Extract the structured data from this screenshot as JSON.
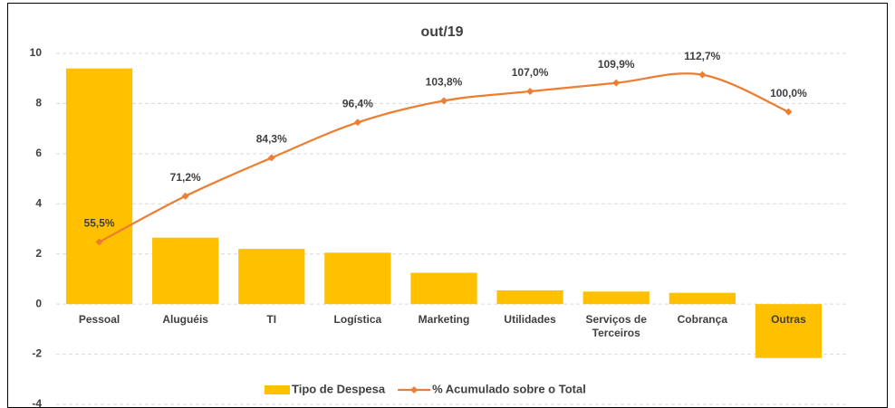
{
  "chart_data": {
    "type": "bar",
    "title": "out/19",
    "categories": [
      "Pessoal",
      "Aluguéis",
      "TI",
      "Logística",
      "Marketing",
      "Utilidades",
      "Serviços de Terceiros",
      "Cobrança",
      "Outras"
    ],
    "series": [
      {
        "name": "Tipo de Despesa",
        "type": "bar",
        "color": "#ffc000",
        "values": [
          9.4,
          2.65,
          2.2,
          2.05,
          1.25,
          0.55,
          0.5,
          0.45,
          -2.15
        ]
      },
      {
        "name": "% Acumulado sobre o Total",
        "type": "line",
        "axis": "y2",
        "color": "#ed7d31",
        "values": [
          55.5,
          71.2,
          84.3,
          96.4,
          103.8,
          107.0,
          109.9,
          112.7,
          100.0
        ],
        "value_labels": [
          "55,5%",
          "71,2%",
          "84,3%",
          "96,4%",
          "103,8%",
          "107,0%",
          "109,9%",
          "112,7%",
          "100,0%"
        ]
      }
    ],
    "ylim": [
      -4,
      10
    ],
    "yticks": [
      -4,
      -2,
      0,
      2,
      4,
      6,
      8,
      10
    ],
    "y2lim": [
      0,
      120
    ],
    "grid": true,
    "legend": "bottom"
  }
}
